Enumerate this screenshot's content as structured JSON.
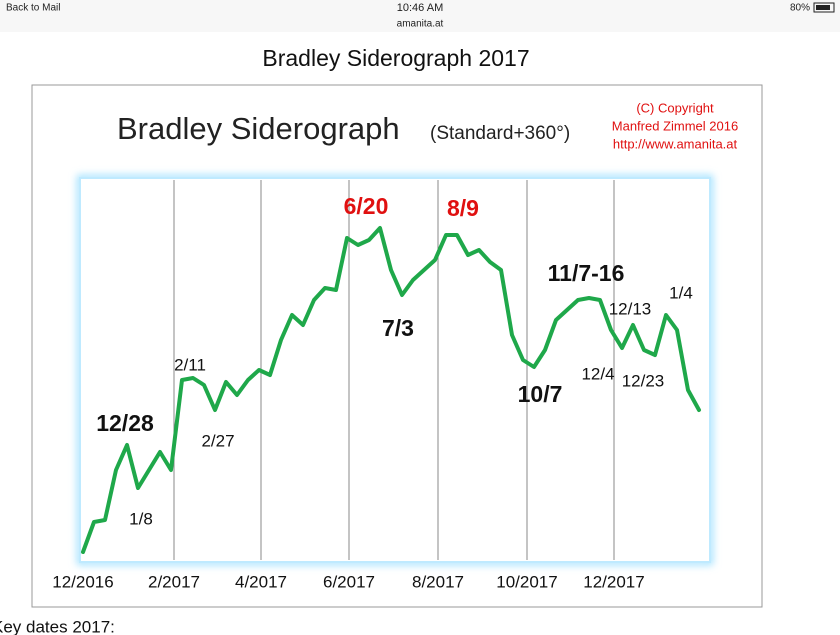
{
  "status_bar": {
    "back": "Back to Mail",
    "time": "10:46 AM",
    "url": "amanita.at",
    "battery": "80%"
  },
  "page": {
    "title": "Bradley Siderograph 2017",
    "footer_text": "Key dates 2017:"
  },
  "chart_data": {
    "type": "line",
    "title": "Bradley Siderograph",
    "subtitle": "(Standard+360°)",
    "copyright": [
      "(C) Copyright",
      "Manfred Zimmel  2016",
      "http://www.amanita.at"
    ],
    "x_labels": [
      "12/2016",
      "2/2017",
      "4/2017",
      "6/2017",
      "8/2017",
      "10/2017",
      "12/2017"
    ],
    "color": "#1fa84a",
    "ylim": [
      0,
      380
    ],
    "values": [
      8,
      38,
      40,
      90,
      115,
      72,
      90,
      108,
      90,
      180,
      182,
      175,
      150,
      178,
      165,
      180,
      190,
      185,
      220,
      245,
      235,
      260,
      272,
      270,
      322,
      315,
      320,
      332,
      290,
      265,
      280,
      290,
      300,
      325,
      325,
      305,
      310,
      298,
      290,
      225,
      200,
      193,
      210,
      240,
      250,
      260,
      262,
      260,
      230,
      212,
      235,
      210,
      205,
      245,
      230,
      170,
      150
    ],
    "annotations": [
      {
        "text": "12/28",
        "color": "#111111"
      },
      {
        "text": "1/8",
        "color": "#111111"
      },
      {
        "text": "2/11",
        "color": "#111111"
      },
      {
        "text": "2/27",
        "color": "#111111"
      },
      {
        "text": "6/20",
        "color": "#e01010"
      },
      {
        "text": "7/3",
        "color": "#111111"
      },
      {
        "text": "8/9",
        "color": "#e01010"
      },
      {
        "text": "10/7",
        "color": "#111111"
      },
      {
        "text": "11/7-16",
        "color": "#111111"
      },
      {
        "text": "12/4",
        "color": "#111111"
      },
      {
        "text": "12/13",
        "color": "#111111"
      },
      {
        "text": "12/23",
        "color": "#111111"
      },
      {
        "text": "1/4",
        "color": "#111111"
      }
    ]
  }
}
